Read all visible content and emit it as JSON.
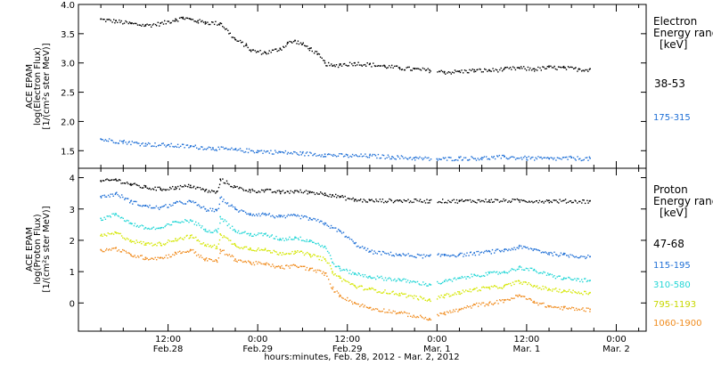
{
  "chart_data": [
    {
      "type": "scatter",
      "panel": "electron",
      "ylabel_lines": [
        "ACE EPAM",
        "log(Electron Flux)",
        "[1/(cm²s ster MeV)]"
      ],
      "ylim": [
        1.2,
        4.0
      ],
      "yticks": [
        1.5,
        2.0,
        2.5,
        3.0,
        3.5,
        4.0
      ],
      "legend_title": [
        "Electron",
        "Energy range",
        "[keV]"
      ],
      "series": [
        {
          "name": "38-53",
          "color": "#000000",
          "x": [
            0,
            2,
            4,
            6,
            8,
            10,
            11,
            12,
            13,
            14,
            16,
            18,
            19.5,
            20,
            22,
            24,
            25,
            26,
            27,
            28,
            29,
            30,
            31,
            32,
            34,
            36,
            38,
            40,
            42,
            44,
            46,
            48,
            50,
            52,
            54,
            56,
            58,
            60,
            62,
            64,
            65.5
          ],
          "y": [
            3.75,
            3.72,
            3.68,
            3.65,
            3.68,
            3.75,
            3.78,
            3.75,
            3.72,
            3.7,
            3.68,
            3.4,
            3.3,
            3.22,
            3.18,
            3.25,
            3.35,
            3.38,
            3.32,
            3.25,
            3.15,
            3.0,
            2.95,
            2.98,
            3.0,
            2.98,
            2.95,
            2.92,
            2.9,
            2.88,
            2.85,
            2.86,
            2.88,
            2.88,
            2.9,
            2.92,
            2.9,
            2.93,
            2.92,
            2.9,
            2.9
          ]
        },
        {
          "name": "175-315",
          "color": "#1e6fd6",
          "x": [
            0,
            3,
            6,
            9,
            12,
            15,
            18,
            21,
            24,
            27,
            30,
            33,
            36,
            39,
            42,
            45,
            48,
            51,
            54,
            57,
            60,
            63,
            65.5
          ],
          "y": [
            1.7,
            1.66,
            1.62,
            1.6,
            1.58,
            1.55,
            1.52,
            1.5,
            1.48,
            1.46,
            1.44,
            1.42,
            1.42,
            1.4,
            1.38,
            1.36,
            1.38,
            1.38,
            1.4,
            1.38,
            1.37,
            1.38,
            1.37
          ]
        }
      ]
    },
    {
      "type": "scatter",
      "panel": "proton",
      "ylabel_lines": [
        "ACE EPAM",
        "log(Proton Flux)",
        "[1/(cm²s ster MeV)]"
      ],
      "ylim": [
        -0.9,
        4.3
      ],
      "yticks": [
        0,
        1,
        2,
        3,
        4
      ],
      "legend_title": [
        "Proton",
        "Energy range",
        "[keV]"
      ],
      "series": [
        {
          "name": "47-68",
          "color": "#000000",
          "x": [
            0,
            2,
            4,
            6,
            8,
            10,
            12,
            14,
            15.5,
            16,
            18,
            20,
            22,
            24,
            26,
            28,
            30,
            31,
            32,
            34,
            36,
            40,
            44,
            48,
            52,
            56,
            60,
            65.5
          ],
          "y": [
            3.9,
            3.95,
            3.8,
            3.7,
            3.65,
            3.7,
            3.75,
            3.6,
            3.55,
            3.95,
            3.7,
            3.6,
            3.6,
            3.55,
            3.58,
            3.55,
            3.5,
            3.45,
            3.4,
            3.3,
            3.28,
            3.28,
            3.27,
            3.27,
            3.28,
            3.28,
            3.27,
            3.26
          ]
        },
        {
          "name": "115-195",
          "color": "#1e6fd6",
          "x": [
            0,
            2,
            4,
            6,
            8,
            10,
            12,
            14,
            15.5,
            16,
            18,
            20,
            22,
            24,
            26,
            28,
            30,
            31,
            32,
            34,
            36,
            40,
            44,
            46,
            48,
            50,
            52,
            54,
            56,
            58,
            60,
            62,
            65.5
          ],
          "y": [
            3.4,
            3.5,
            3.25,
            3.1,
            3.05,
            3.2,
            3.25,
            3.0,
            2.95,
            3.35,
            3.0,
            2.85,
            2.85,
            2.75,
            2.8,
            2.7,
            2.55,
            2.4,
            2.3,
            1.9,
            1.65,
            1.55,
            1.5,
            1.55,
            1.55,
            1.6,
            1.65,
            1.7,
            1.8,
            1.72,
            1.6,
            1.55,
            1.48
          ]
        },
        {
          "name": "310-580",
          "color": "#22d6d6",
          "x": [
            0,
            2,
            4,
            6,
            8,
            10,
            12,
            14,
            15.5,
            16,
            18,
            20,
            22,
            24,
            26,
            28,
            30,
            31,
            32,
            34,
            36,
            40,
            44,
            46,
            48,
            50,
            52,
            54,
            56,
            58,
            60,
            62,
            65.5
          ],
          "y": [
            2.7,
            2.85,
            2.55,
            2.4,
            2.4,
            2.6,
            2.65,
            2.35,
            2.3,
            2.75,
            2.3,
            2.2,
            2.2,
            2.05,
            2.1,
            2.0,
            1.8,
            1.3,
            1.1,
            0.95,
            0.85,
            0.75,
            0.6,
            0.7,
            0.8,
            0.9,
            0.95,
            1.0,
            1.15,
            1.05,
            0.9,
            0.8,
            0.72
          ]
        },
        {
          "name": "795-1193",
          "color": "#d4e600",
          "x": [
            0,
            2,
            4,
            6,
            8,
            10,
            12,
            14,
            15.5,
            16,
            18,
            20,
            22,
            24,
            26,
            28,
            30,
            31,
            32,
            34,
            36,
            40,
            44,
            46,
            48,
            50,
            52,
            54,
            56,
            58,
            60,
            62,
            65.5
          ],
          "y": [
            2.15,
            2.25,
            2.0,
            1.9,
            1.9,
            2.05,
            2.15,
            1.85,
            1.8,
            2.2,
            1.85,
            1.75,
            1.7,
            1.6,
            1.65,
            1.55,
            1.4,
            1.0,
            0.8,
            0.55,
            0.45,
            0.3,
            0.1,
            0.25,
            0.35,
            0.45,
            0.5,
            0.55,
            0.7,
            0.55,
            0.45,
            0.4,
            0.33
          ]
        },
        {
          "name": "1060-1900",
          "color": "#f08c1e",
          "x": [
            0,
            2,
            4,
            6,
            8,
            10,
            12,
            14,
            15.5,
            16,
            18,
            20,
            22,
            24,
            26,
            28,
            30,
            31,
            32,
            34,
            36,
            40,
            44,
            46,
            48,
            50,
            52,
            54,
            56,
            58,
            60,
            62,
            65.5
          ],
          "y": [
            1.7,
            1.75,
            1.55,
            1.45,
            1.45,
            1.6,
            1.7,
            1.4,
            1.35,
            1.7,
            1.4,
            1.3,
            1.25,
            1.15,
            1.2,
            1.1,
            0.95,
            0.45,
            0.25,
            0.0,
            -0.15,
            -0.3,
            -0.5,
            -0.3,
            -0.2,
            -0.05,
            0.0,
            0.1,
            0.25,
            0.05,
            -0.1,
            -0.15,
            -0.2
          ]
        }
      ]
    }
  ],
  "x_axis": {
    "ticks": [
      {
        "hour": 9,
        "time": "12:00",
        "date": "Feb.28"
      },
      {
        "hour": 21,
        "time": "0:00",
        "date": "Feb.29"
      },
      {
        "hour": 33,
        "time": "12:00",
        "date": "Feb.29"
      },
      {
        "hour": 45,
        "time": "0:00",
        "date": "Mar. 1"
      },
      {
        "hour": 57,
        "time": "12:00",
        "date": "Mar. 1"
      },
      {
        "hour": 69,
        "time": "0:00",
        "date": "Mar. 2"
      }
    ],
    "range_hours": [
      -3,
      73
    ],
    "label": "hours:minutes, Feb. 28, 2012 - Mar. 2, 2012"
  }
}
